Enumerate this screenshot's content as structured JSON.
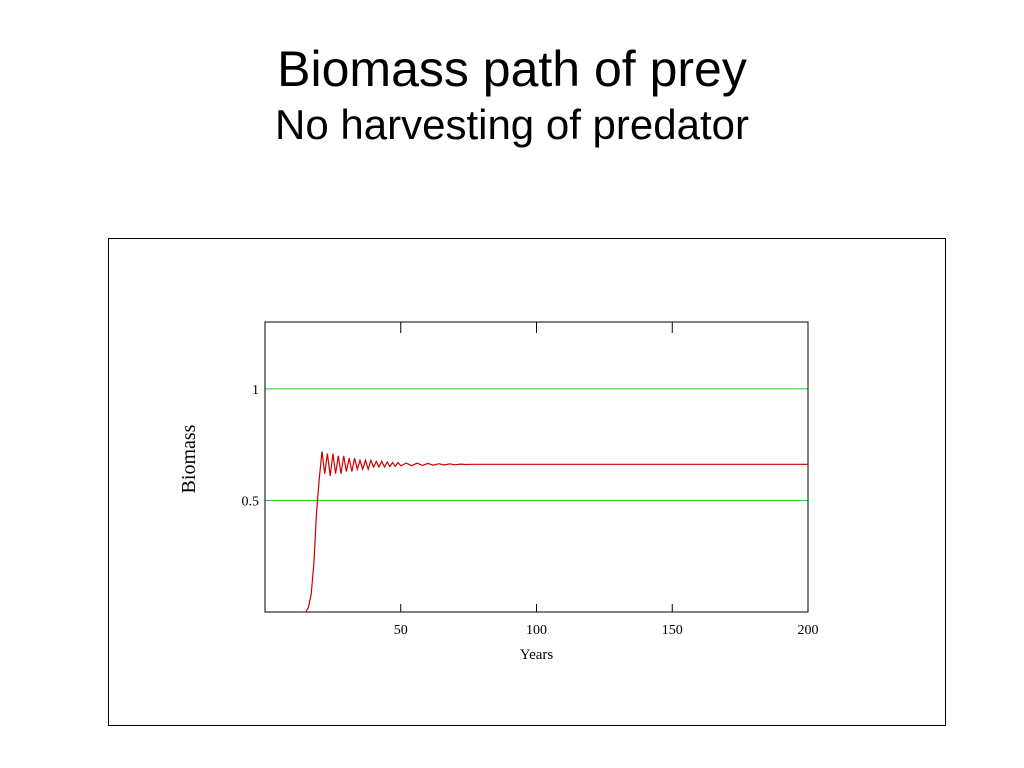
{
  "slide": {
    "title": "Biomass path of prey",
    "subtitle": "No harvesting of predator"
  },
  "colors": {
    "series_line": "#cc0000",
    "reference_lines": "#22cc22",
    "axes": "#000000"
  },
  "chart_data": {
    "type": "line",
    "title": "",
    "xlabel": "Years",
    "ylabel": "Biomass",
    "xlim": [
      0,
      200
    ],
    "ylim": [
      0,
      1.3
    ],
    "xticks": [
      50,
      100,
      150,
      200
    ],
    "yticks": [
      0.5,
      1
    ],
    "top_tick_marks": [
      50,
      100,
      150
    ],
    "grid": false,
    "reference_lines": [
      0.5,
      1
    ],
    "series": [
      {
        "values": [
          [
            15,
            0.0
          ],
          [
            16,
            0.02
          ],
          [
            17,
            0.08
          ],
          [
            18,
            0.22
          ],
          [
            19,
            0.45
          ],
          [
            20,
            0.6
          ],
          [
            21,
            0.72
          ],
          [
            22,
            0.62
          ],
          [
            23,
            0.71
          ],
          [
            24,
            0.61
          ],
          [
            25,
            0.71
          ],
          [
            26,
            0.62
          ],
          [
            27,
            0.7
          ],
          [
            28,
            0.62
          ],
          [
            29,
            0.7
          ],
          [
            30,
            0.63
          ],
          [
            31,
            0.69
          ],
          [
            32,
            0.63
          ],
          [
            33,
            0.69
          ],
          [
            34,
            0.64
          ],
          [
            35,
            0.68
          ],
          [
            36,
            0.64
          ],
          [
            37,
            0.68
          ],
          [
            38,
            0.64
          ],
          [
            39,
            0.68
          ],
          [
            40,
            0.65
          ],
          [
            41,
            0.675
          ],
          [
            42,
            0.65
          ],
          [
            43,
            0.675
          ],
          [
            44,
            0.65
          ],
          [
            45,
            0.672
          ],
          [
            46,
            0.652
          ],
          [
            47,
            0.67
          ],
          [
            48,
            0.653
          ],
          [
            49,
            0.67
          ],
          [
            50,
            0.655
          ],
          [
            52,
            0.668
          ],
          [
            54,
            0.656
          ],
          [
            56,
            0.667
          ],
          [
            58,
            0.657
          ],
          [
            60,
            0.666
          ],
          [
            62,
            0.658
          ],
          [
            64,
            0.665
          ],
          [
            66,
            0.659
          ],
          [
            68,
            0.664
          ],
          [
            70,
            0.66
          ],
          [
            72,
            0.663
          ],
          [
            74,
            0.661
          ],
          [
            76,
            0.662
          ],
          [
            78,
            0.662
          ],
          [
            100,
            0.662
          ],
          [
            150,
            0.662
          ],
          [
            200,
            0.662
          ]
        ]
      }
    ]
  }
}
